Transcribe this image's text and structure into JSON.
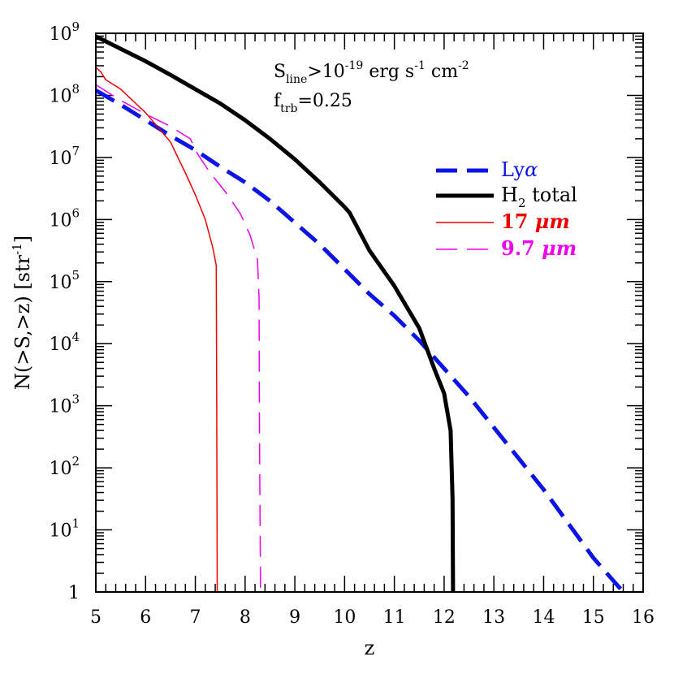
{
  "chart_data": {
    "type": "line",
    "xlabel": "z",
    "ylabel_main": "N(>S,>z)  [str",
    "ylabel_sup": "-1",
    "ylabel_close": "]",
    "xlim": [
      5,
      16
    ],
    "ylim_log10": [
      0,
      9
    ],
    "yscale": "log",
    "x_ticks": [
      {
        "value": 5,
        "label": "5"
      },
      {
        "value": 6,
        "label": "6"
      },
      {
        "value": 7,
        "label": "7"
      },
      {
        "value": 8,
        "label": "8"
      },
      {
        "value": 9,
        "label": "9"
      },
      {
        "value": 10,
        "label": "10"
      },
      {
        "value": 11,
        "label": "11"
      },
      {
        "value": 12,
        "label": "12"
      },
      {
        "value": 13,
        "label": "13"
      },
      {
        "value": 14,
        "label": "14"
      },
      {
        "value": 15,
        "label": "15"
      },
      {
        "value": 16,
        "label": "16"
      }
    ],
    "y_ticks": [
      {
        "exp": 0,
        "base": "1",
        "sup": ""
      },
      {
        "exp": 1,
        "base": "10",
        "sup": "1"
      },
      {
        "exp": 2,
        "base": "10",
        "sup": "2"
      },
      {
        "exp": 3,
        "base": "10",
        "sup": "3"
      },
      {
        "exp": 4,
        "base": "10",
        "sup": "4"
      },
      {
        "exp": 5,
        "base": "10",
        "sup": "5"
      },
      {
        "exp": 6,
        "base": "10",
        "sup": "6"
      },
      {
        "exp": 7,
        "base": "10",
        "sup": "7"
      },
      {
        "exp": 8,
        "base": "10",
        "sup": "8"
      },
      {
        "exp": 9,
        "base": "10",
        "sup": "9"
      }
    ],
    "annotation": {
      "line1_S": "S",
      "line1_sub": "line",
      "line1_mid": ">10",
      "line1_sup1": "-19",
      "line1_units": " erg s",
      "line1_sup2": "-1",
      "line1_units2": " cm",
      "line1_sup3": "-2",
      "line2_f": "f",
      "line2_sub": "trb",
      "line2_rest": "=0.25"
    },
    "series": [
      {
        "name": "Lyα",
        "legend_main": "Ly",
        "legend_greek": "α",
        "color": "#0a14e6",
        "style": "dashed-thick",
        "points": [
          [
            5.0,
            8.08
          ],
          [
            5.5,
            7.85
          ],
          [
            6.0,
            7.6
          ],
          [
            6.5,
            7.35
          ],
          [
            7.0,
            7.12
          ],
          [
            7.5,
            6.85
          ],
          [
            8.0,
            6.6
          ],
          [
            8.5,
            6.3
          ],
          [
            9.0,
            5.95
          ],
          [
            9.5,
            5.6
          ],
          [
            10.0,
            5.2
          ],
          [
            10.5,
            4.8
          ],
          [
            11.0,
            4.45
          ],
          [
            11.5,
            4.05
          ],
          [
            12.0,
            3.6
          ],
          [
            12.5,
            3.15
          ],
          [
            13.0,
            2.65
          ],
          [
            13.5,
            2.15
          ],
          [
            14.0,
            1.65
          ],
          [
            14.5,
            1.1
          ],
          [
            15.0,
            0.55
          ],
          [
            15.6,
            0.0
          ]
        ]
      },
      {
        "name": "H2 total",
        "legend_main": "H",
        "legend_sub": "2",
        "legend_rest": " total",
        "color": "#000000",
        "style": "solid-thick",
        "points": [
          [
            5.0,
            8.95
          ],
          [
            5.5,
            8.75
          ],
          [
            6.0,
            8.55
          ],
          [
            6.5,
            8.33
          ],
          [
            7.0,
            8.1
          ],
          [
            7.5,
            7.87
          ],
          [
            8.0,
            7.6
          ],
          [
            8.5,
            7.3
          ],
          [
            9.0,
            6.97
          ],
          [
            9.5,
            6.6
          ],
          [
            10.0,
            6.2
          ],
          [
            10.1,
            6.11
          ],
          [
            10.5,
            5.5
          ],
          [
            11.0,
            4.93
          ],
          [
            11.5,
            4.25
          ],
          [
            11.8,
            3.6
          ],
          [
            12.0,
            3.2
          ],
          [
            12.13,
            2.6
          ],
          [
            12.17,
            1.5
          ],
          [
            12.18,
            0.0
          ]
        ]
      },
      {
        "name": "17 μm",
        "legend_main": "17 ",
        "legend_greek": "μ",
        "legend_rest": "m",
        "color": "#ee0000",
        "style": "solid-thin",
        "points": [
          [
            5.0,
            8.45
          ],
          [
            5.1,
            8.38
          ],
          [
            5.2,
            8.25
          ],
          [
            5.5,
            8.1
          ],
          [
            6.0,
            7.72
          ],
          [
            6.5,
            7.25
          ],
          [
            6.8,
            6.75
          ],
          [
            7.0,
            6.4
          ],
          [
            7.2,
            6.0
          ],
          [
            7.35,
            5.55
          ],
          [
            7.42,
            5.26
          ],
          [
            7.43,
            3.0
          ],
          [
            7.44,
            0.0
          ]
        ]
      },
      {
        "name": "9.7 μm",
        "legend_main": "9.7 ",
        "legend_greek": "μ",
        "legend_rest": "m",
        "color": "#ee00ee",
        "style": "dashed-thin",
        "points": [
          [
            5.0,
            8.17
          ],
          [
            5.5,
            7.92
          ],
          [
            6.0,
            7.7
          ],
          [
            6.5,
            7.5
          ],
          [
            6.9,
            7.3
          ],
          [
            7.05,
            7.05
          ],
          [
            7.3,
            6.75
          ],
          [
            7.6,
            6.45
          ],
          [
            7.9,
            6.1
          ],
          [
            8.1,
            5.75
          ],
          [
            8.25,
            5.35
          ],
          [
            8.28,
            4.75
          ],
          [
            8.29,
            2.5
          ],
          [
            8.31,
            0.0
          ]
        ]
      }
    ]
  }
}
